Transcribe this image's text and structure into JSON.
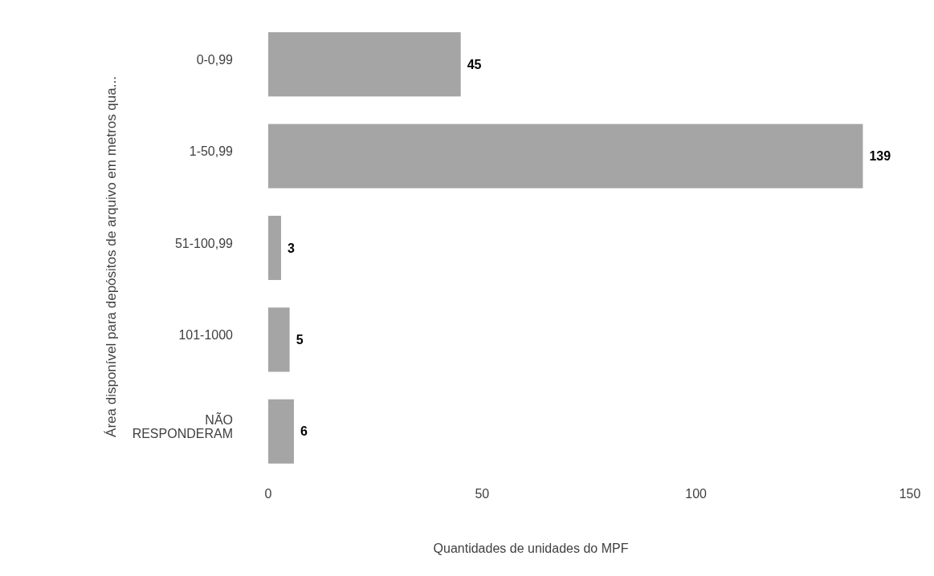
{
  "chart_data": {
    "type": "bar",
    "orientation": "horizontal",
    "categories": [
      "0-0,99",
      "1-50,99",
      "51-100,99",
      "101-1000",
      "NÃO RESPONDERAM"
    ],
    "values": [
      45,
      139,
      3,
      5,
      6
    ],
    "color": "#a5a5a5",
    "xlim": [
      0,
      150
    ],
    "xticks": [
      0,
      50,
      100,
      150
    ],
    "xlabel": "Quantidades de unidades do MPF",
    "ylabel": "Área disponível para depósitos de arquivo em metros qua...",
    "data_labels": true,
    "grid": false
  }
}
